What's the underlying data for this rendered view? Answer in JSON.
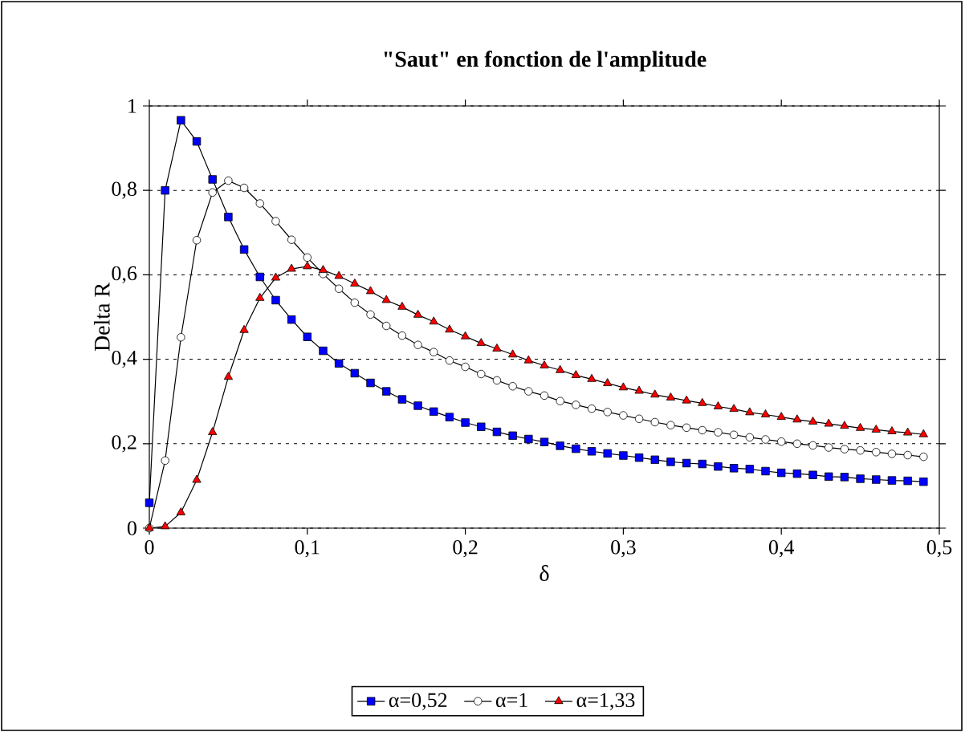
{
  "chart_data": {
    "type": "line",
    "title": "\"Saut\" en fonction de l'amplitude",
    "xlabel": "δ",
    "ylabel": "Delta R",
    "x": [
      0,
      0.01,
      0.02,
      0.03,
      0.04,
      0.05,
      0.06,
      0.07,
      0.08,
      0.09,
      0.1,
      0.11,
      0.12,
      0.13,
      0.14,
      0.15,
      0.16,
      0.17,
      0.18,
      0.19,
      0.2,
      0.21,
      0.22,
      0.23,
      0.24,
      0.25,
      0.26,
      0.27,
      0.28,
      0.29,
      0.3,
      0.31,
      0.32,
      0.33,
      0.34,
      0.35,
      0.36,
      0.37,
      0.38,
      0.39,
      0.4,
      0.41,
      0.42,
      0.43,
      0.44,
      0.45,
      0.46,
      0.47,
      0.48,
      0.49
    ],
    "series": [
      {
        "name": "α=0,52",
        "color": "#0000ff",
        "marker": "square",
        "values": [
          0.06,
          0.8,
          0.966,
          0.916,
          0.826,
          0.737,
          0.66,
          0.595,
          0.54,
          0.494,
          0.453,
          0.42,
          0.39,
          0.367,
          0.344,
          0.324,
          0.305,
          0.29,
          0.276,
          0.263,
          0.25,
          0.24,
          0.228,
          0.219,
          0.211,
          0.204,
          0.195,
          0.188,
          0.182,
          0.177,
          0.172,
          0.167,
          0.162,
          0.157,
          0.154,
          0.152,
          0.146,
          0.142,
          0.14,
          0.135,
          0.131,
          0.129,
          0.126,
          0.122,
          0.121,
          0.117,
          0.115,
          0.113,
          0.112,
          0.11
        ]
      },
      {
        "name": "α=1",
        "color": "#ffffff",
        "marker": "circle",
        "values": [
          0,
          0.16,
          0.452,
          0.682,
          0.795,
          0.823,
          0.806,
          0.769,
          0.727,
          0.683,
          0.641,
          0.602,
          0.567,
          0.534,
          0.506,
          0.479,
          0.456,
          0.434,
          0.417,
          0.397,
          0.382,
          0.365,
          0.35,
          0.336,
          0.324,
          0.314,
          0.301,
          0.292,
          0.283,
          0.275,
          0.267,
          0.259,
          0.251,
          0.244,
          0.238,
          0.232,
          0.227,
          0.221,
          0.215,
          0.21,
          0.205,
          0.2,
          0.196,
          0.191,
          0.187,
          0.184,
          0.18,
          0.176,
          0.173,
          0.169
        ]
      },
      {
        "name": "α=1,33",
        "color": "#ff0000",
        "marker": "triangle",
        "values": [
          0,
          0.004,
          0.037,
          0.114,
          0.227,
          0.358,
          0.469,
          0.545,
          0.593,
          0.614,
          0.62,
          0.611,
          0.597,
          0.579,
          0.561,
          0.54,
          0.524,
          0.505,
          0.489,
          0.47,
          0.454,
          0.438,
          0.425,
          0.411,
          0.397,
          0.385,
          0.374,
          0.362,
          0.353,
          0.343,
          0.333,
          0.325,
          0.316,
          0.309,
          0.302,
          0.296,
          0.288,
          0.282,
          0.274,
          0.269,
          0.263,
          0.257,
          0.252,
          0.247,
          0.242,
          0.237,
          0.233,
          0.229,
          0.226,
          0.222
        ]
      }
    ],
    "xlim": [
      0,
      0.5
    ],
    "ylim": [
      0,
      1
    ],
    "xticks": [
      0,
      {
        "value": 0.1,
        "label": "0,1"
      },
      {
        "value": 0.2,
        "label": "0,2"
      },
      {
        "value": 0.3,
        "label": "0,3"
      },
      {
        "value": 0.4,
        "label": "0,4"
      },
      {
        "value": 0.5,
        "label": "0,5"
      }
    ],
    "yticks": [
      0,
      {
        "value": 0.2,
        "label": "0,2"
      },
      {
        "value": 0.4,
        "label": "0,4"
      },
      {
        "value": 0.6,
        "label": "0,6"
      },
      {
        "value": 0.8,
        "label": "0,8"
      },
      1
    ],
    "grid": "y",
    "legend": "bottom"
  }
}
